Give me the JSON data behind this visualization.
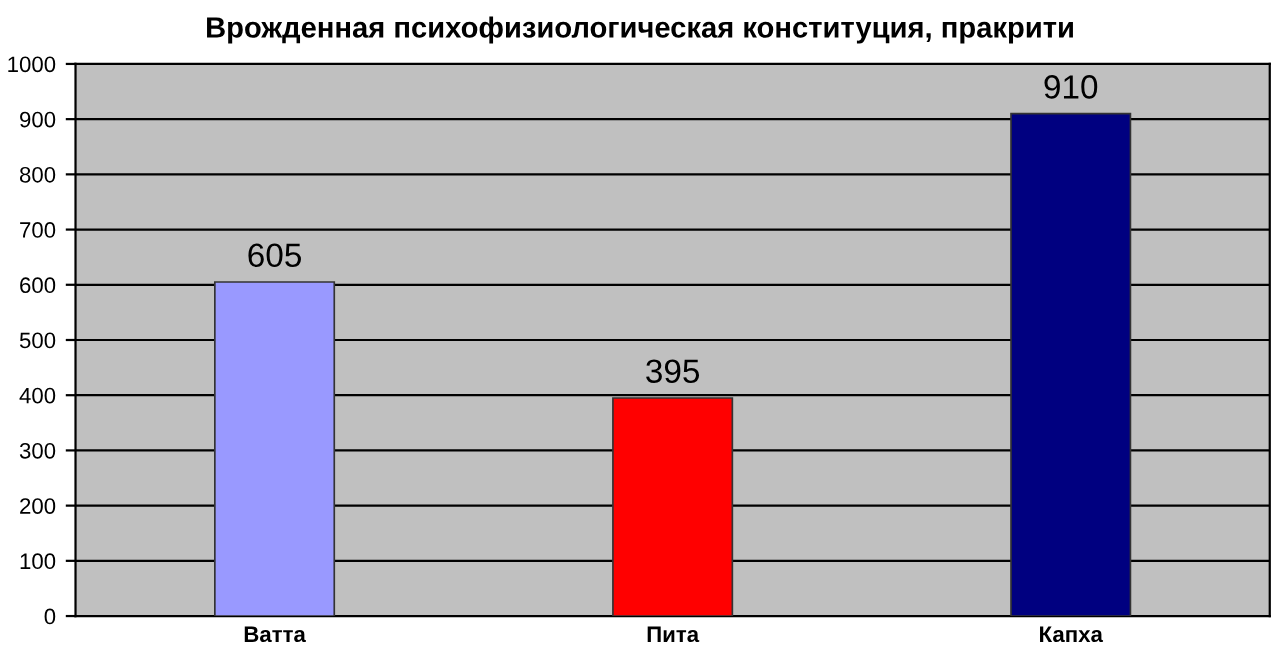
{
  "chart_data": {
    "type": "bar",
    "title": "Врожденная психофизиологическая конституция, пракрити",
    "categories": [
      "Ватта",
      "Пита",
      "Капха"
    ],
    "values": [
      605,
      395,
      910
    ],
    "colors": [
      "#9999ff",
      "#ff0000",
      "#000080"
    ],
    "ylim": [
      0,
      1000
    ],
    "yticks": [
      0,
      100,
      200,
      300,
      400,
      500,
      600,
      700,
      800,
      900,
      1000
    ],
    "grid": "y",
    "data_labels": true
  }
}
